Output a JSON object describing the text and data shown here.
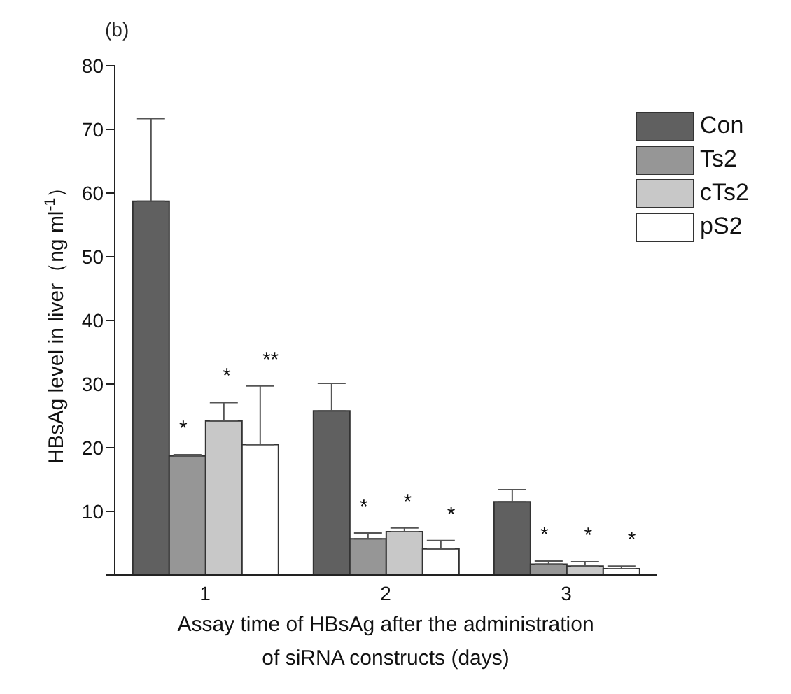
{
  "chart_data": {
    "type": "bar",
    "title": "(b)",
    "xlabel": "Assay time of HBsAg after the administration of siRNA constructs (days)",
    "ylabel": "HBsAg level in liver（ng ml$^{-1}$）",
    "categories": [
      "1",
      "2",
      "3"
    ],
    "series": [
      {
        "name": "Con",
        "color": "#606060",
        "values": [
          58.7,
          25.8,
          11.5
        ],
        "errors": [
          [
            58.7,
            71.7
          ],
          [
            25.8,
            30.1
          ],
          [
            11.5,
            13.4
          ]
        ]
      },
      {
        "name": "Ts2",
        "color": "#969696",
        "values": [
          18.7,
          5.7,
          1.7
        ],
        "errors": [
          [
            18.7,
            18.9
          ],
          [
            5.7,
            6.6
          ],
          [
            1.7,
            2.2
          ]
        ]
      },
      {
        "name": "cTs2",
        "color": "#c8c8c8",
        "values": [
          24.2,
          6.8,
          1.4
        ],
        "errors": [
          [
            24.2,
            27.1
          ],
          [
            6.8,
            7.4
          ],
          [
            1.4,
            2.1
          ]
        ]
      },
      {
        "name": "pS2",
        "color": "#ffffff",
        "values": [
          20.5,
          4.1,
          1.0
        ],
        "errors": [
          [
            20.5,
            29.7
          ],
          [
            4.1,
            5.4
          ],
          [
            1.0,
            1.4
          ]
        ]
      }
    ],
    "annotations": [
      "*",
      "*",
      "**",
      "*",
      "*",
      "*",
      "*",
      "*",
      "*"
    ],
    "ylim": [
      0,
      80
    ],
    "yticks": [
      {
        "value": 0,
        "label": null
      },
      10,
      20,
      30,
      40,
      50,
      60,
      70,
      80
    ],
    "grid": false,
    "legend": "top right"
  }
}
